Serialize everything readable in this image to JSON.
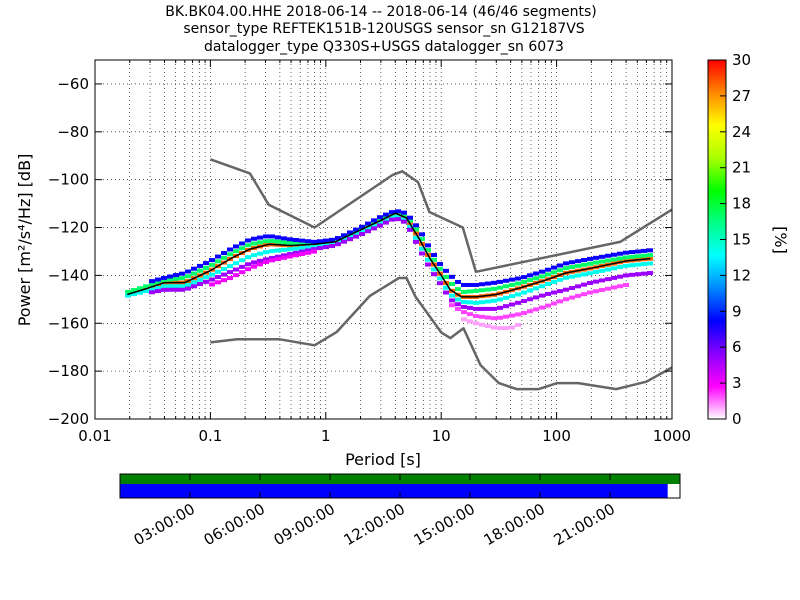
{
  "title_lines": [
    "BK.BK04.00.HHE   2018-06-14 -- 2018-06-14  (46/46 segments)",
    "sensor_type REFTEK151B-120USGS sensor_sn G12187VS",
    "datalogger_type Q330S+USGS datalogger_sn 6073"
  ],
  "chart_data": {
    "type": "heatmap",
    "xlabel": "Period [s]",
    "ylabel": "Power [m²/s⁴/Hz] [dB]",
    "xscale": "log",
    "xlim": [
      0.01,
      1000
    ],
    "ylim": [
      -200,
      -50
    ],
    "xticks": [
      0.01,
      0.1,
      1,
      10,
      100,
      1000
    ],
    "xtick_labels": [
      "0.01",
      "0.1",
      "1",
      "10",
      "100",
      "1000"
    ],
    "yticks": [
      -200,
      -180,
      -160,
      -140,
      -120,
      -100,
      -80,
      -60
    ],
    "ytick_labels": [
      "−200",
      "−180",
      "−160",
      "−140",
      "−120",
      "−100",
      "−80",
      "−60"
    ],
    "grid": true,
    "colorbar": {
      "label": "[%]",
      "range": [
        0,
        30
      ],
      "ticks": [
        0,
        3,
        6,
        9,
        12,
        15,
        18,
        21,
        24,
        27,
        30
      ],
      "tick_labels": [
        "0",
        "3",
        "6",
        "9",
        "12",
        "15",
        "18",
        "21",
        "24",
        "27",
        "30"
      ],
      "colormap": [
        "#ffffff",
        "#ff00ff",
        "#8800ff",
        "#0000ff",
        "#0088ff",
        "#00ffff",
        "#00ff88",
        "#00ff00",
        "#aaff00",
        "#ffff00",
        "#ff8800",
        "#ff0000"
      ]
    },
    "series": [
      {
        "role": "high-noise-model",
        "color": "#666666",
        "x": [
          0.1,
          0.22,
          0.32,
          0.8,
          3.8,
          4.6,
          6.3,
          7.9,
          15.4,
          20,
          354.8,
          1000
        ],
        "y": [
          -91.5,
          -97.4,
          -110.5,
          -120,
          -98,
          -96.5,
          -101,
          -113.5,
          -120,
          -138.5,
          -126,
          -112.5
        ]
      },
      {
        "role": "low-noise-model",
        "color": "#666666",
        "x": [
          0.1,
          0.17,
          0.4,
          0.8,
          1.24,
          2.4,
          4.3,
          5.0,
          6.0,
          10.0,
          12.0,
          15.6,
          21.9,
          31.6,
          45.0,
          70.0,
          101.0,
          154.0,
          328.0,
          600.0,
          1000.0
        ],
        "y": [
          -168,
          -166.7,
          -166.7,
          -169.2,
          -163.7,
          -148.6,
          -141.1,
          -141.1,
          -149.0,
          -163.8,
          -166.2,
          -162.1,
          -177.5,
          -185.0,
          -187.5,
          -187.5,
          -185.0,
          -185.0,
          -187.5,
          -184.4,
          -178.5
        ]
      },
      {
        "role": "mode",
        "color": "#000000",
        "x": [
          0.019,
          0.028,
          0.04,
          0.06,
          0.1,
          0.15,
          0.22,
          0.32,
          0.5,
          0.8,
          1.2,
          2.0,
          3.0,
          4.0,
          5.0,
          6.5,
          8.0,
          10.0,
          12.0,
          15.0,
          20.0,
          30.0,
          50.0,
          80.0,
          120.0,
          200.0,
          400.0,
          650.0
        ],
        "y": [
          -148,
          -145.5,
          -143,
          -143,
          -138,
          -133,
          -129,
          -127,
          -127.5,
          -127,
          -126,
          -121,
          -117,
          -114,
          -116,
          -125,
          -133,
          -140,
          -146,
          -149,
          -149,
          -148,
          -145,
          -142,
          -139,
          -137,
          -134,
          -133
        ]
      }
    ],
    "density": [
      {
        "x": [
          0.019,
          0.028,
          0.04,
          0.06,
          0.1,
          0.15,
          0.22,
          0.32,
          0.5,
          0.8,
          1.2,
          2.0,
          3.0,
          4.0,
          5.0,
          6.5,
          8.0,
          10.0,
          12.0,
          15.0,
          20.0,
          30.0,
          50.0,
          80.0,
          120.0,
          200.0,
          400.0,
          650.0
        ],
        "y": [
          -148,
          -145.5,
          -143,
          -143,
          -138,
          -133,
          -129,
          -127,
          -127.5,
          -127,
          -126,
          -121,
          -117,
          -114,
          -116,
          -125,
          -133,
          -140,
          -146,
          -149,
          -149,
          -148,
          -145,
          -142,
          -139,
          -137,
          -134,
          -133
        ],
        "pct": 28
      },
      {
        "x": [
          0.019,
          0.028,
          0.04,
          0.06,
          0.1,
          0.15,
          0.22,
          0.32,
          0.5,
          0.8,
          1.2,
          2.0,
          3.0,
          4.0,
          5.0,
          6.5,
          8.0,
          10.0,
          12.0,
          15.0,
          20.0,
          30.0,
          50.0,
          80.0,
          120.0,
          200.0,
          400.0,
          650.0
        ],
        "y": [
          -147,
          -144.5,
          -142,
          -141,
          -136,
          -131,
          -127,
          -125.5,
          -126.5,
          -126.5,
          -125.5,
          -120.5,
          -116,
          -113.5,
          -115,
          -123,
          -131,
          -138,
          -143,
          -147,
          -146.5,
          -145.5,
          -143,
          -140,
          -137,
          -135,
          -132.5,
          -131.5
        ],
        "pct": 17
      },
      {
        "x": [
          0.019,
          0.028,
          0.04,
          0.06,
          0.1,
          0.15,
          0.22,
          0.32,
          0.5,
          0.8,
          1.2,
          2.0,
          3.0,
          4.0,
          5.0,
          6.5,
          8.0,
          10.0,
          12.0,
          15.0,
          20.0,
          30.0,
          50.0,
          80.0,
          120.0,
          200.0,
          400.0,
          650.0
        ],
        "y": [
          -148.5,
          -146.5,
          -144.5,
          -144.5,
          -140,
          -136,
          -132,
          -130,
          -129,
          -128,
          -126.5,
          -122,
          -118,
          -115,
          -117,
          -127,
          -135,
          -142,
          -148,
          -151,
          -151.5,
          -150.5,
          -147.5,
          -144,
          -141,
          -139,
          -136,
          -135
        ],
        "pct": 14
      },
      {
        "x": [
          0.028,
          0.04,
          0.06,
          0.1,
          0.15,
          0.22,
          0.32,
          0.5,
          0.8,
          1.2,
          2.0,
          3.0,
          4.0,
          5.0,
          6.5,
          8.0,
          10.0,
          12.0,
          15.0,
          20.0,
          30.0,
          50.0,
          80.0,
          120.0,
          200.0,
          400.0,
          650.0
        ],
        "y": [
          -143,
          -141,
          -139,
          -134,
          -129,
          -125,
          -123.5,
          -125,
          -126,
          -125,
          -120,
          -115.5,
          -113,
          -114,
          -121,
          -129,
          -136,
          -140,
          -144,
          -144,
          -143,
          -141,
          -138,
          -135,
          -133,
          -130.5,
          -129.5
        ],
        "pct": 8
      },
      {
        "x": [
          0.028,
          0.04,
          0.06,
          0.1,
          0.15,
          0.22,
          0.32,
          0.5,
          0.8,
          1.2,
          2.0,
          3.0,
          4.0,
          5.0,
          6.5,
          8.0,
          10.0,
          12.0,
          15.0,
          20.0,
          30.0,
          50.0,
          80.0,
          120.0,
          200.0,
          400.0,
          650.0
        ],
        "y": [
          -147.5,
          -146,
          -146,
          -142,
          -138.5,
          -135,
          -133,
          -131,
          -129,
          -127.5,
          -123,
          -119,
          -116,
          -118,
          -129,
          -137,
          -144,
          -150,
          -153,
          -154,
          -154,
          -151,
          -148,
          -146,
          -143,
          -140,
          -139
        ],
        "pct": 5
      },
      {
        "x": [
          12.0,
          15.0,
          20.0,
          30.0,
          50.0,
          80.0,
          120.0,
          200.0,
          400.0
        ],
        "y": [
          -152,
          -155,
          -157,
          -158,
          -156,
          -153,
          -150,
          -147,
          -144
        ],
        "pct": 2
      },
      {
        "x": [
          15.0,
          20.0,
          30.0,
          40.0,
          50.0
        ],
        "y": [
          -158,
          -160,
          -162,
          -162,
          -160
        ],
        "pct": 1
      },
      {
        "x": [
          0.1,
          0.15,
          0.22,
          0.32,
          0.5,
          0.8
        ],
        "y": [
          -144,
          -141,
          -137,
          -134,
          -132,
          -130
        ],
        "pct": 3
      }
    ]
  },
  "timeline": {
    "tick_labels": [
      "03:00:00",
      "06:00:00",
      "09:00:00",
      "12:00:00",
      "15:00:00",
      "18:00:00",
      "21:00:00"
    ],
    "tick_hours": [
      3,
      6,
      9,
      12,
      15,
      18,
      21
    ],
    "range_hours": [
      0,
      24
    ],
    "data_coverage_fraction": 1.0,
    "segment_coverage_fraction": 0.978,
    "data_color": "#008000",
    "segment_color": "#0000ff"
  }
}
